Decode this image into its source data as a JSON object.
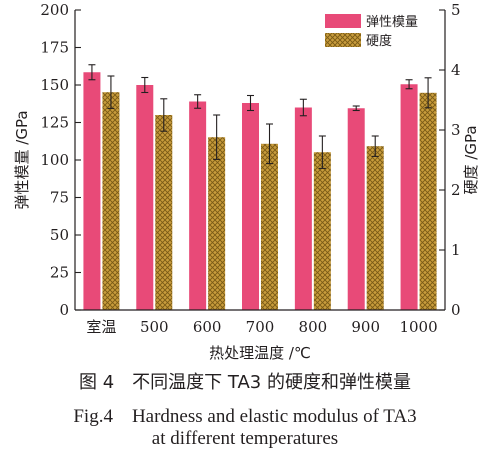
{
  "chart_data": {
    "type": "bar",
    "categories": [
      "室温",
      "500",
      "600",
      "700",
      "800",
      "900",
      "1000"
    ],
    "series": [
      {
        "name": "弹性模量",
        "axis": "left",
        "color": "#e84a78",
        "values": [
          158.5,
          150,
          139,
          138,
          135,
          134.5,
          150.5
        ],
        "errors": [
          5,
          5,
          4.5,
          5,
          5.5,
          1.5,
          3
        ]
      },
      {
        "name": "硬度",
        "axis": "right",
        "color": "#c49a3a",
        "pattern": "crosshatch",
        "values": [
          3.63,
          3.25,
          2.88,
          2.77,
          2.63,
          2.73,
          3.62
        ],
        "errors": [
          0.27,
          0.27,
          0.37,
          0.33,
          0.27,
          0.17,
          0.25
        ]
      }
    ],
    "xlabel": "热处理温度 /℃",
    "ylabel_left": "弹性模量 /GPa",
    "ylabel_right": "硬度 /GPa",
    "ylim_left": [
      0,
      200
    ],
    "ylim_right": [
      0,
      5
    ],
    "yticks_left": [
      0,
      25,
      50,
      75,
      100,
      125,
      150,
      175,
      200
    ],
    "yticks_right": [
      0,
      1,
      2,
      3,
      4,
      5
    ],
    "grid": false,
    "legend": "top-right"
  },
  "caption": {
    "zh": "图 4　不同温度下 TA3 的硬度和弹性模量",
    "en_line1": "Fig.4　Hardness and elastic modulus of TA3",
    "en_line2": "at different temperatures"
  }
}
